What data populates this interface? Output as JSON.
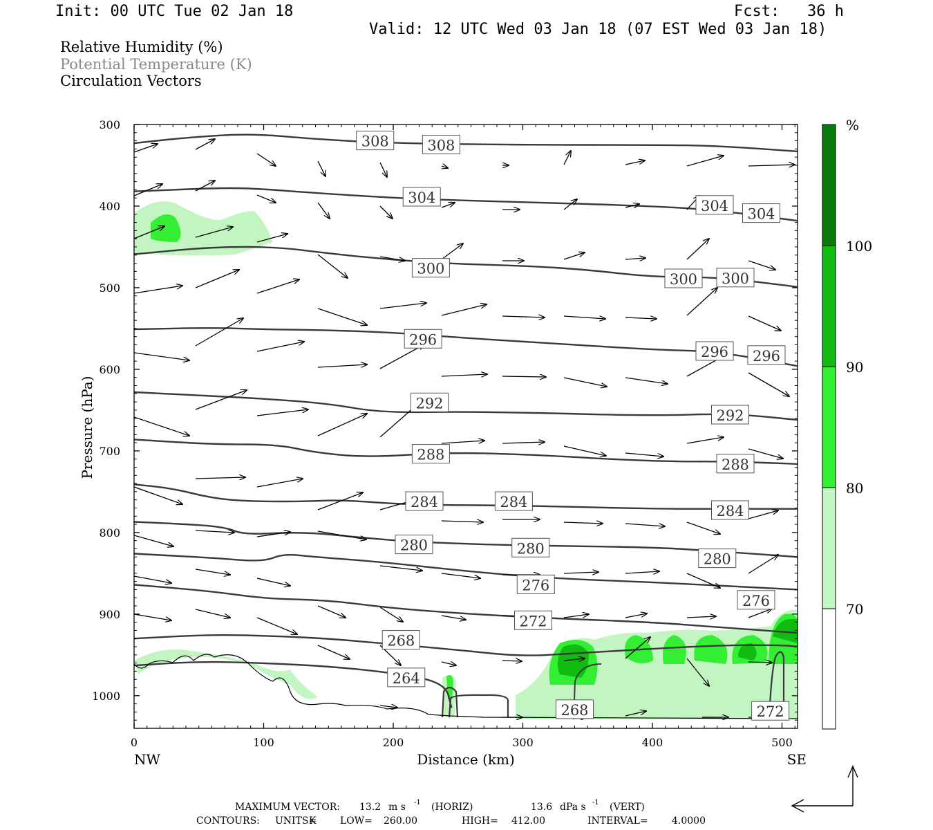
{
  "header": {
    "init": "Init: 00 UTC Tue 02 Jan 18",
    "fcst": "Fcst:   36 h",
    "valid": "Valid: 12 UTC Wed 03 Jan 18 (07 EST Wed 03 Jan 18)"
  },
  "fields": {
    "rh": "Relative Humidity (%)",
    "theta": "Potential Temperature (K)",
    "vectors": "Circulation Vectors"
  },
  "colors": {
    "rh70": "#c2f5c2",
    "rh80": "#33ee33",
    "rh90": "#11bb11",
    "rh100": "#0a7a0a",
    "contour": "#3a3a3a"
  },
  "chart_data": {
    "type": "cross-section",
    "ylabel": "Pressure (hPa)",
    "xlabel": "Distance (km)",
    "y_scale": "inverted",
    "ylim": [
      1040,
      300
    ],
    "xlim": [
      0,
      512
    ],
    "y_ticks": [
      300,
      400,
      500,
      600,
      700,
      800,
      900,
      1000
    ],
    "x_ticks": [
      0,
      100,
      200,
      300,
      400,
      500
    ],
    "x_end_labels": {
      "left": "NW",
      "right": "SE"
    },
    "colorbar": {
      "unit": "%",
      "levels": [
        70,
        80,
        90,
        100
      ]
    },
    "isentropes": [
      {
        "theta": 308,
        "points": [
          [
            0,
            323
          ],
          [
            40,
            316
          ],
          [
            90,
            311
          ],
          [
            140,
            318
          ],
          [
            200,
            323
          ],
          [
            300,
            325
          ],
          [
            400,
            325
          ],
          [
            450,
            326
          ],
          [
            512,
            333
          ]
        ]
      },
      {
        "theta": 304,
        "points": [
          [
            0,
            382
          ],
          [
            60,
            378
          ],
          [
            90,
            378
          ],
          [
            140,
            384
          ],
          [
            200,
            390
          ],
          [
            250,
            393
          ],
          [
            300,
            395
          ],
          [
            400,
            400
          ],
          [
            450,
            405
          ],
          [
            512,
            418
          ]
        ]
      },
      {
        "theta": 300,
        "points": [
          [
            0,
            459
          ],
          [
            60,
            450
          ],
          [
            110,
            450
          ],
          [
            150,
            458
          ],
          [
            200,
            466
          ],
          [
            250,
            471
          ],
          [
            300,
            473
          ],
          [
            350,
            478
          ],
          [
            400,
            487
          ],
          [
            450,
            487
          ],
          [
            512,
            499
          ]
        ]
      },
      {
        "theta": 296,
        "points": [
          [
            0,
            551
          ],
          [
            60,
            549
          ],
          [
            100,
            551
          ],
          [
            150,
            552
          ],
          [
            200,
            555
          ],
          [
            250,
            561
          ],
          [
            300,
            566
          ],
          [
            400,
            576
          ],
          [
            450,
            578
          ],
          [
            512,
            596
          ]
        ]
      },
      {
        "theta": 292,
        "points": [
          [
            0,
            628
          ],
          [
            50,
            632
          ],
          [
            100,
            636
          ],
          [
            150,
            642
          ],
          [
            190,
            653
          ],
          [
            250,
            652
          ],
          [
            300,
            653
          ],
          [
            400,
            657
          ],
          [
            460,
            654
          ],
          [
            512,
            662
          ]
        ]
      },
      {
        "theta": 288,
        "points": [
          [
            0,
            686
          ],
          [
            60,
            692
          ],
          [
            110,
            692
          ],
          [
            140,
            702
          ],
          [
            180,
            708
          ],
          [
            240,
            702
          ],
          [
            300,
            704
          ],
          [
            400,
            713
          ],
          [
            460,
            713
          ],
          [
            512,
            716
          ]
        ]
      },
      {
        "theta": 284,
        "points": [
          [
            0,
            741
          ],
          [
            30,
            746
          ],
          [
            60,
            758
          ],
          [
            90,
            762
          ],
          [
            130,
            762
          ],
          [
            160,
            760
          ],
          [
            210,
            766
          ],
          [
            300,
            767
          ],
          [
            400,
            771
          ],
          [
            450,
            771
          ],
          [
            512,
            771
          ]
        ]
      },
      {
        "theta": 280,
        "points": [
          [
            0,
            787
          ],
          [
            30,
            789
          ],
          [
            70,
            793
          ],
          [
            85,
            803
          ],
          [
            130,
            799
          ],
          [
            180,
            807
          ],
          [
            220,
            812
          ],
          [
            300,
            816
          ],
          [
            400,
            818
          ],
          [
            450,
            823
          ],
          [
            512,
            830
          ]
        ]
      },
      {
        "theta": 276,
        "points": [
          [
            0,
            826
          ],
          [
            60,
            831
          ],
          [
            100,
            836
          ],
          [
            115,
            826
          ],
          [
            140,
            830
          ],
          [
            190,
            836
          ],
          [
            260,
            848
          ],
          [
            320,
            856
          ],
          [
            400,
            861
          ],
          [
            450,
            865
          ],
          [
            512,
            870
          ]
        ]
      },
      {
        "theta": 272,
        "points": [
          [
            0,
            864
          ],
          [
            60,
            872
          ],
          [
            100,
            881
          ],
          [
            150,
            883
          ],
          [
            200,
            893
          ],
          [
            260,
            900
          ],
          [
            320,
            905
          ],
          [
            400,
            910
          ],
          [
            450,
            916
          ],
          [
            512,
            923
          ]
        ]
      },
      {
        "theta": 268,
        "points": [
          [
            0,
            930
          ],
          [
            60,
            925
          ],
          [
            110,
            927
          ],
          [
            150,
            930
          ],
          [
            200,
            937
          ],
          [
            250,
            944
          ],
          [
            300,
            952
          ],
          [
            340,
            948
          ],
          [
            450,
            938
          ],
          [
            500,
            938
          ],
          [
            512,
            940
          ]
        ]
      },
      {
        "theta": 264,
        "points": [
          [
            0,
            963
          ],
          [
            50,
            958
          ],
          [
            100,
            960
          ],
          [
            150,
            964
          ],
          [
            200,
            972
          ],
          [
            240,
            984
          ],
          [
            245,
            1015
          ]
        ]
      }
    ],
    "contour_labels": [
      {
        "text": "308",
        "x": 186,
        "p": 320
      },
      {
        "text": "308",
        "x": 237,
        "p": 325
      },
      {
        "text": "304",
        "x": 222,
        "p": 389
      },
      {
        "text": "304",
        "x": 448,
        "p": 399
      },
      {
        "text": "304",
        "x": 484,
        "p": 409
      },
      {
        "text": "300",
        "x": 229,
        "p": 476
      },
      {
        "text": "300",
        "x": 424,
        "p": 489
      },
      {
        "text": "300",
        "x": 464,
        "p": 488
      },
      {
        "text": "296",
        "x": 223,
        "p": 563
      },
      {
        "text": "296",
        "x": 448,
        "p": 578
      },
      {
        "text": "296",
        "x": 488,
        "p": 583
      },
      {
        "text": "292",
        "x": 228,
        "p": 641
      },
      {
        "text": "292",
        "x": 460,
        "p": 656
      },
      {
        "text": "288",
        "x": 229,
        "p": 704
      },
      {
        "text": "288",
        "x": 464,
        "p": 716
      },
      {
        "text": "284",
        "x": 224,
        "p": 762
      },
      {
        "text": "284",
        "x": 293,
        "p": 762
      },
      {
        "text": "284",
        "x": 460,
        "p": 773
      },
      {
        "text": "280",
        "x": 216,
        "p": 815
      },
      {
        "text": "280",
        "x": 306,
        "p": 819
      },
      {
        "text": "280",
        "x": 450,
        "p": 832
      },
      {
        "text": "276",
        "x": 310,
        "p": 864
      },
      {
        "text": "276",
        "x": 480,
        "p": 883
      },
      {
        "text": "272",
        "x": 308,
        "p": 908
      },
      {
        "text": "268",
        "x": 206,
        "p": 932
      },
      {
        "text": "264",
        "x": 210,
        "p": 978
      },
      {
        "text": "268",
        "x": 340,
        "p": 1017
      },
      {
        "text": "272",
        "x": 491,
        "p": 1019
      }
    ],
    "max_vector": {
      "horiz": "13.2",
      "horiz_unit": "m s",
      "vert": "13.6",
      "vert_unit": "dPa s",
      "exp": "-1",
      "horiz_tag": "(HORIZ)",
      "vert_tag": "(VERT)"
    },
    "contour_info": {
      "units": "K",
      "low": "260.00",
      "high": "412.00",
      "interval": "4.0000"
    }
  },
  "footer": {
    "max_label": "MAXIMUM VECTOR:",
    "contours_label": "CONTOURS:",
    "units_label": "UNITS=",
    "low_label": "LOW=",
    "high_label": "HIGH=",
    "interval_label": "INTERVAL="
  }
}
